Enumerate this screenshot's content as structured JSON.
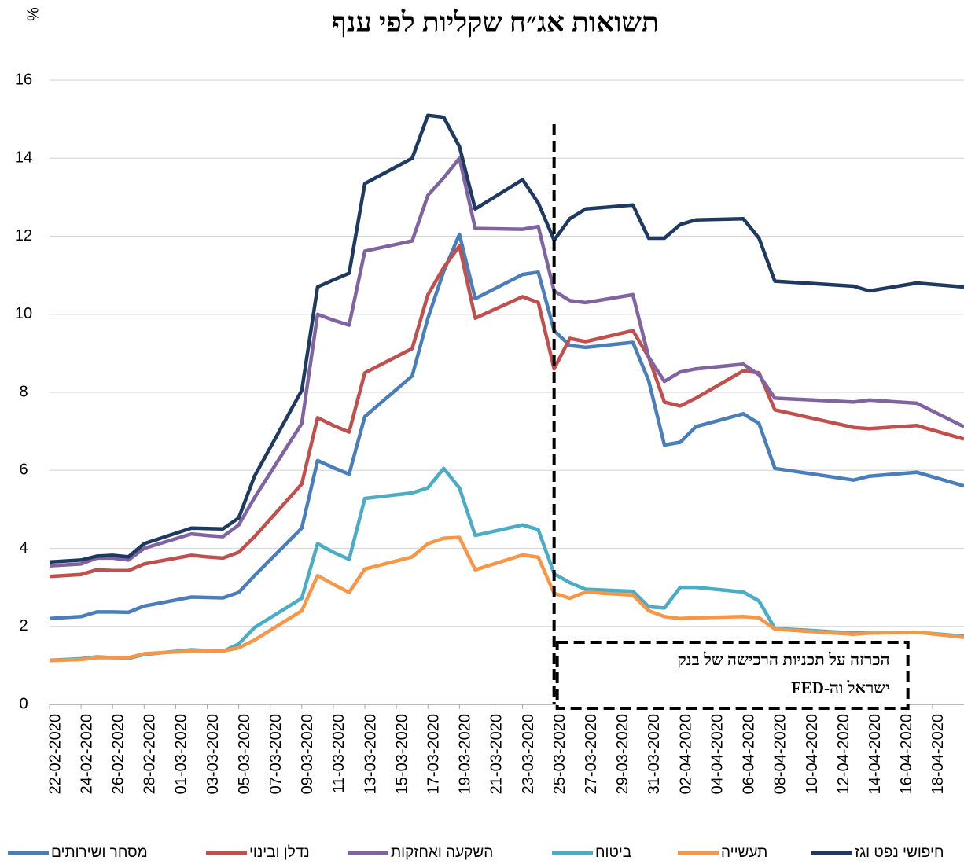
{
  "chart_data": {
    "type": "line",
    "title": "תשואות אג״ח שקליות לפי ענף",
    "y_label": "%",
    "x": [
      "2020-02-22",
      "2020-02-24",
      "2020-02-25",
      "2020-02-26",
      "2020-02-27",
      "2020-02-28",
      "2020-03-02",
      "2020-03-03",
      "2020-03-04",
      "2020-03-05",
      "2020-03-06",
      "2020-03-09",
      "2020-03-10",
      "2020-03-11",
      "2020-03-12",
      "2020-03-13",
      "2020-03-16",
      "2020-03-17",
      "2020-03-18",
      "2020-03-19",
      "2020-03-20",
      "2020-03-23",
      "2020-03-24",
      "2020-03-25",
      "2020-03-26",
      "2020-03-27",
      "2020-03-30",
      "2020-03-31",
      "2020-04-01",
      "2020-04-02",
      "2020-04-03",
      "2020-04-06",
      "2020-04-07",
      "2020-04-08",
      "2020-04-13",
      "2020-04-14",
      "2020-04-17",
      "2020-04-20"
    ],
    "series": [
      {
        "name": "מסחר ושירותים",
        "color": "#4a7ebb",
        "values": [
          2.2,
          2.25,
          2.37,
          2.37,
          2.36,
          2.52,
          2.75,
          2.74,
          2.73,
          2.87,
          3.3,
          4.52,
          6.25,
          6.07,
          5.9,
          7.38,
          8.42,
          9.9,
          11.1,
          12.05,
          10.4,
          11.02,
          11.08,
          9.58,
          9.2,
          9.15,
          9.28,
          8.3,
          6.65,
          6.72,
          7.12,
          7.45,
          7.2,
          6.05,
          5.75,
          5.85,
          5.95,
          5.6
        ]
      },
      {
        "name": "נדלן ובינוי",
        "color": "#c0504d",
        "values": [
          3.28,
          3.33,
          3.45,
          3.43,
          3.43,
          3.6,
          3.82,
          3.78,
          3.75,
          3.9,
          4.3,
          5.65,
          7.35,
          7.15,
          6.98,
          8.5,
          9.12,
          10.5,
          11.2,
          11.75,
          9.9,
          10.45,
          10.3,
          8.6,
          9.38,
          9.3,
          9.58,
          8.9,
          7.75,
          7.65,
          7.85,
          8.55,
          8.5,
          7.55,
          7.1,
          7.07,
          7.15,
          6.8
        ]
      },
      {
        "name": "השקעה ואחזקות",
        "color": "#8064a2",
        "values": [
          3.55,
          3.6,
          3.75,
          3.75,
          3.7,
          4.0,
          4.37,
          4.33,
          4.3,
          4.6,
          5.3,
          7.2,
          10.0,
          9.85,
          9.72,
          11.62,
          11.88,
          13.05,
          13.5,
          14.0,
          12.2,
          12.18,
          12.25,
          10.6,
          10.35,
          10.3,
          10.5,
          8.9,
          8.28,
          8.52,
          8.6,
          8.72,
          8.45,
          7.85,
          7.75,
          7.8,
          7.72,
          7.12
        ]
      },
      {
        "name": "ביטוח",
        "color": "#4bacc6",
        "values": [
          1.13,
          1.17,
          1.22,
          1.2,
          1.18,
          1.28,
          1.4,
          1.38,
          1.36,
          1.55,
          1.97,
          2.72,
          4.12,
          3.9,
          3.72,
          5.28,
          5.42,
          5.55,
          6.05,
          5.55,
          4.33,
          4.6,
          4.48,
          3.35,
          3.12,
          2.95,
          2.9,
          2.5,
          2.47,
          3.0,
          3.0,
          2.88,
          2.65,
          1.95,
          1.83,
          1.85,
          1.85,
          1.75
        ]
      },
      {
        "name": "תעשייה",
        "color": "#f79646",
        "values": [
          1.12,
          1.15,
          1.2,
          1.2,
          1.2,
          1.3,
          1.37,
          1.37,
          1.37,
          1.45,
          1.65,
          2.4,
          3.3,
          3.08,
          2.87,
          3.47,
          3.78,
          4.12,
          4.26,
          4.28,
          3.45,
          3.83,
          3.77,
          2.85,
          2.72,
          2.88,
          2.8,
          2.4,
          2.25,
          2.2,
          2.22,
          2.25,
          2.22,
          1.93,
          1.8,
          1.83,
          1.85,
          1.72
        ]
      },
      {
        "name": "חיפושי נפט וגז",
        "color": "#1f3a60",
        "values": [
          3.65,
          3.7,
          3.8,
          3.82,
          3.78,
          4.12,
          4.52,
          4.51,
          4.5,
          4.78,
          5.85,
          8.05,
          10.7,
          10.88,
          11.05,
          13.35,
          14.0,
          15.1,
          15.05,
          14.3,
          12.7,
          13.45,
          12.85,
          11.9,
          12.45,
          12.7,
          12.8,
          11.95,
          11.95,
          12.3,
          12.42,
          12.45,
          11.95,
          10.85,
          10.72,
          10.6,
          10.8,
          10.7
        ]
      }
    ],
    "xlim": [
      "2020-02-22",
      "2020-04-20"
    ],
    "xticks": [
      {
        "value": "2020-02-22",
        "label": "22-02-2020"
      },
      {
        "value": "2020-02-24",
        "label": "24-02-2020"
      },
      {
        "value": "2020-02-26",
        "label": "26-02-2020"
      },
      {
        "value": "2020-02-28",
        "label": "28-02-2020"
      },
      {
        "value": "2020-03-01",
        "label": "01-03-2020"
      },
      {
        "value": "2020-03-03",
        "label": "03-03-2020"
      },
      {
        "value": "2020-03-05",
        "label": "05-03-2020"
      },
      {
        "value": "2020-03-07",
        "label": "07-03-2020"
      },
      {
        "value": "2020-03-09",
        "label": "09-03-2020"
      },
      {
        "value": "2020-03-11",
        "label": "11-03-2020"
      },
      {
        "value": "2020-03-13",
        "label": "13-03-2020"
      },
      {
        "value": "2020-03-15",
        "label": "15-03-2020"
      },
      {
        "value": "2020-03-17",
        "label": "17-03-2020"
      },
      {
        "value": "2020-03-19",
        "label": "19-03-2020"
      },
      {
        "value": "2020-03-21",
        "label": "21-03-2020"
      },
      {
        "value": "2020-03-23",
        "label": "23-03-2020"
      },
      {
        "value": "2020-03-25",
        "label": "25-03-2020"
      },
      {
        "value": "2020-03-27",
        "label": "27-03-2020"
      },
      {
        "value": "2020-03-29",
        "label": "29-03-2020"
      },
      {
        "value": "2020-03-31",
        "label": "31-03-2020"
      },
      {
        "value": "2020-04-02",
        "label": "02-04-2020"
      },
      {
        "value": "2020-04-04",
        "label": "04-04-2020"
      },
      {
        "value": "2020-04-06",
        "label": "06-04-2020"
      },
      {
        "value": "2020-04-08",
        "label": "08-04-2020"
      },
      {
        "value": "2020-04-10",
        "label": "10-04-2020"
      },
      {
        "value": "2020-04-12",
        "label": "12-04-2020"
      },
      {
        "value": "2020-04-14",
        "label": "14-04-2020"
      },
      {
        "value": "2020-04-16",
        "label": "16-04-2020"
      },
      {
        "value": "2020-04-18",
        "label": "18-04-2020"
      }
    ],
    "ylim": [
      0,
      16
    ],
    "yticks": [
      0,
      2,
      4,
      6,
      8,
      10,
      12,
      14,
      16
    ],
    "grid": true,
    "legend": "bottom",
    "event_date": "2020-03-25",
    "annotation": [
      "הכרזה על תכניות הרכישה של בנק",
      "ישראל וה-FED"
    ]
  }
}
